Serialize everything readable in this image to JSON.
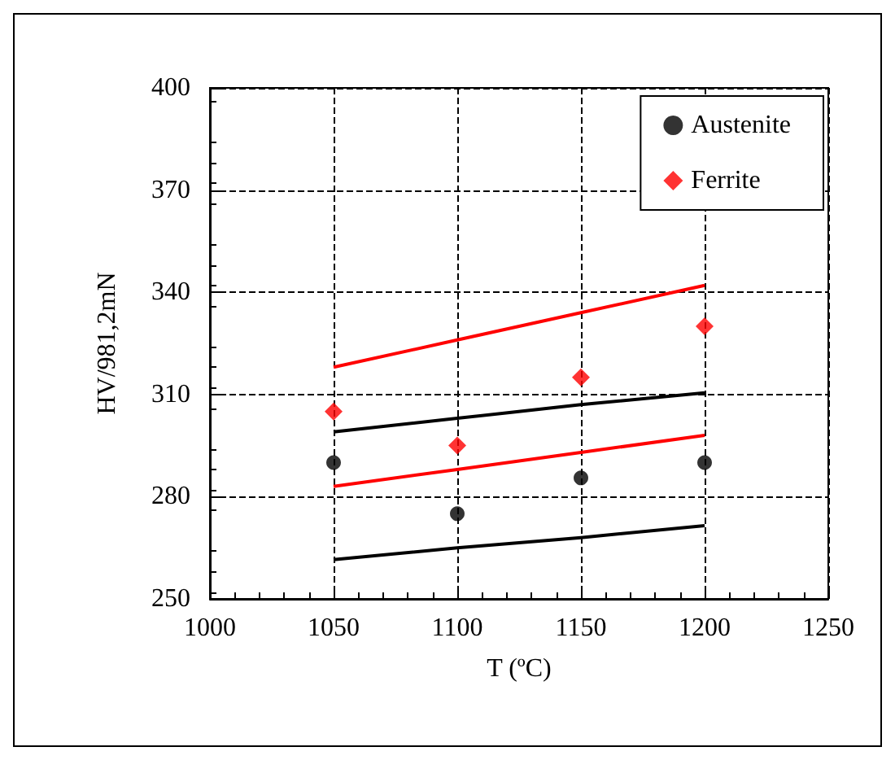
{
  "chart_data": {
    "type": "scatter",
    "xlabel": "T (ºC)",
    "ylabel": "HV/981,2mN",
    "x": [
      1050,
      1100,
      1150,
      1200
    ],
    "series": [
      {
        "name": "Austenite",
        "color": "#000000",
        "marker": "circle",
        "values": [
          290,
          275,
          285.5,
          290
        ]
      },
      {
        "name": "Ferrite",
        "color": "#ff0000",
        "marker": "diamond",
        "values": [
          305,
          295,
          315,
          330
        ]
      },
      {
        "type": "line",
        "color": "#ff0000",
        "values": [
          318,
          326,
          334,
          342
        ],
        "marker": "none"
      },
      {
        "type": "line",
        "color": "#000000",
        "values": [
          299,
          303,
          307,
          310.5
        ],
        "marker": "none"
      },
      {
        "type": "line",
        "color": "#ff0000",
        "values": [
          283,
          288,
          293,
          298
        ],
        "marker": "none"
      },
      {
        "type": "line",
        "color": "#000000",
        "values": [
          261.5,
          265,
          268,
          271.5
        ],
        "marker": "none"
      }
    ],
    "xlim": [
      1000,
      1250
    ],
    "xticks": [
      1000,
      1050,
      1100,
      1150,
      1200,
      1250
    ],
    "ylim": [
      250,
      400
    ],
    "yticks": [
      250,
      280,
      310,
      340,
      370,
      400
    ],
    "grid": true,
    "legend": "top right",
    "line_style": "solid"
  }
}
